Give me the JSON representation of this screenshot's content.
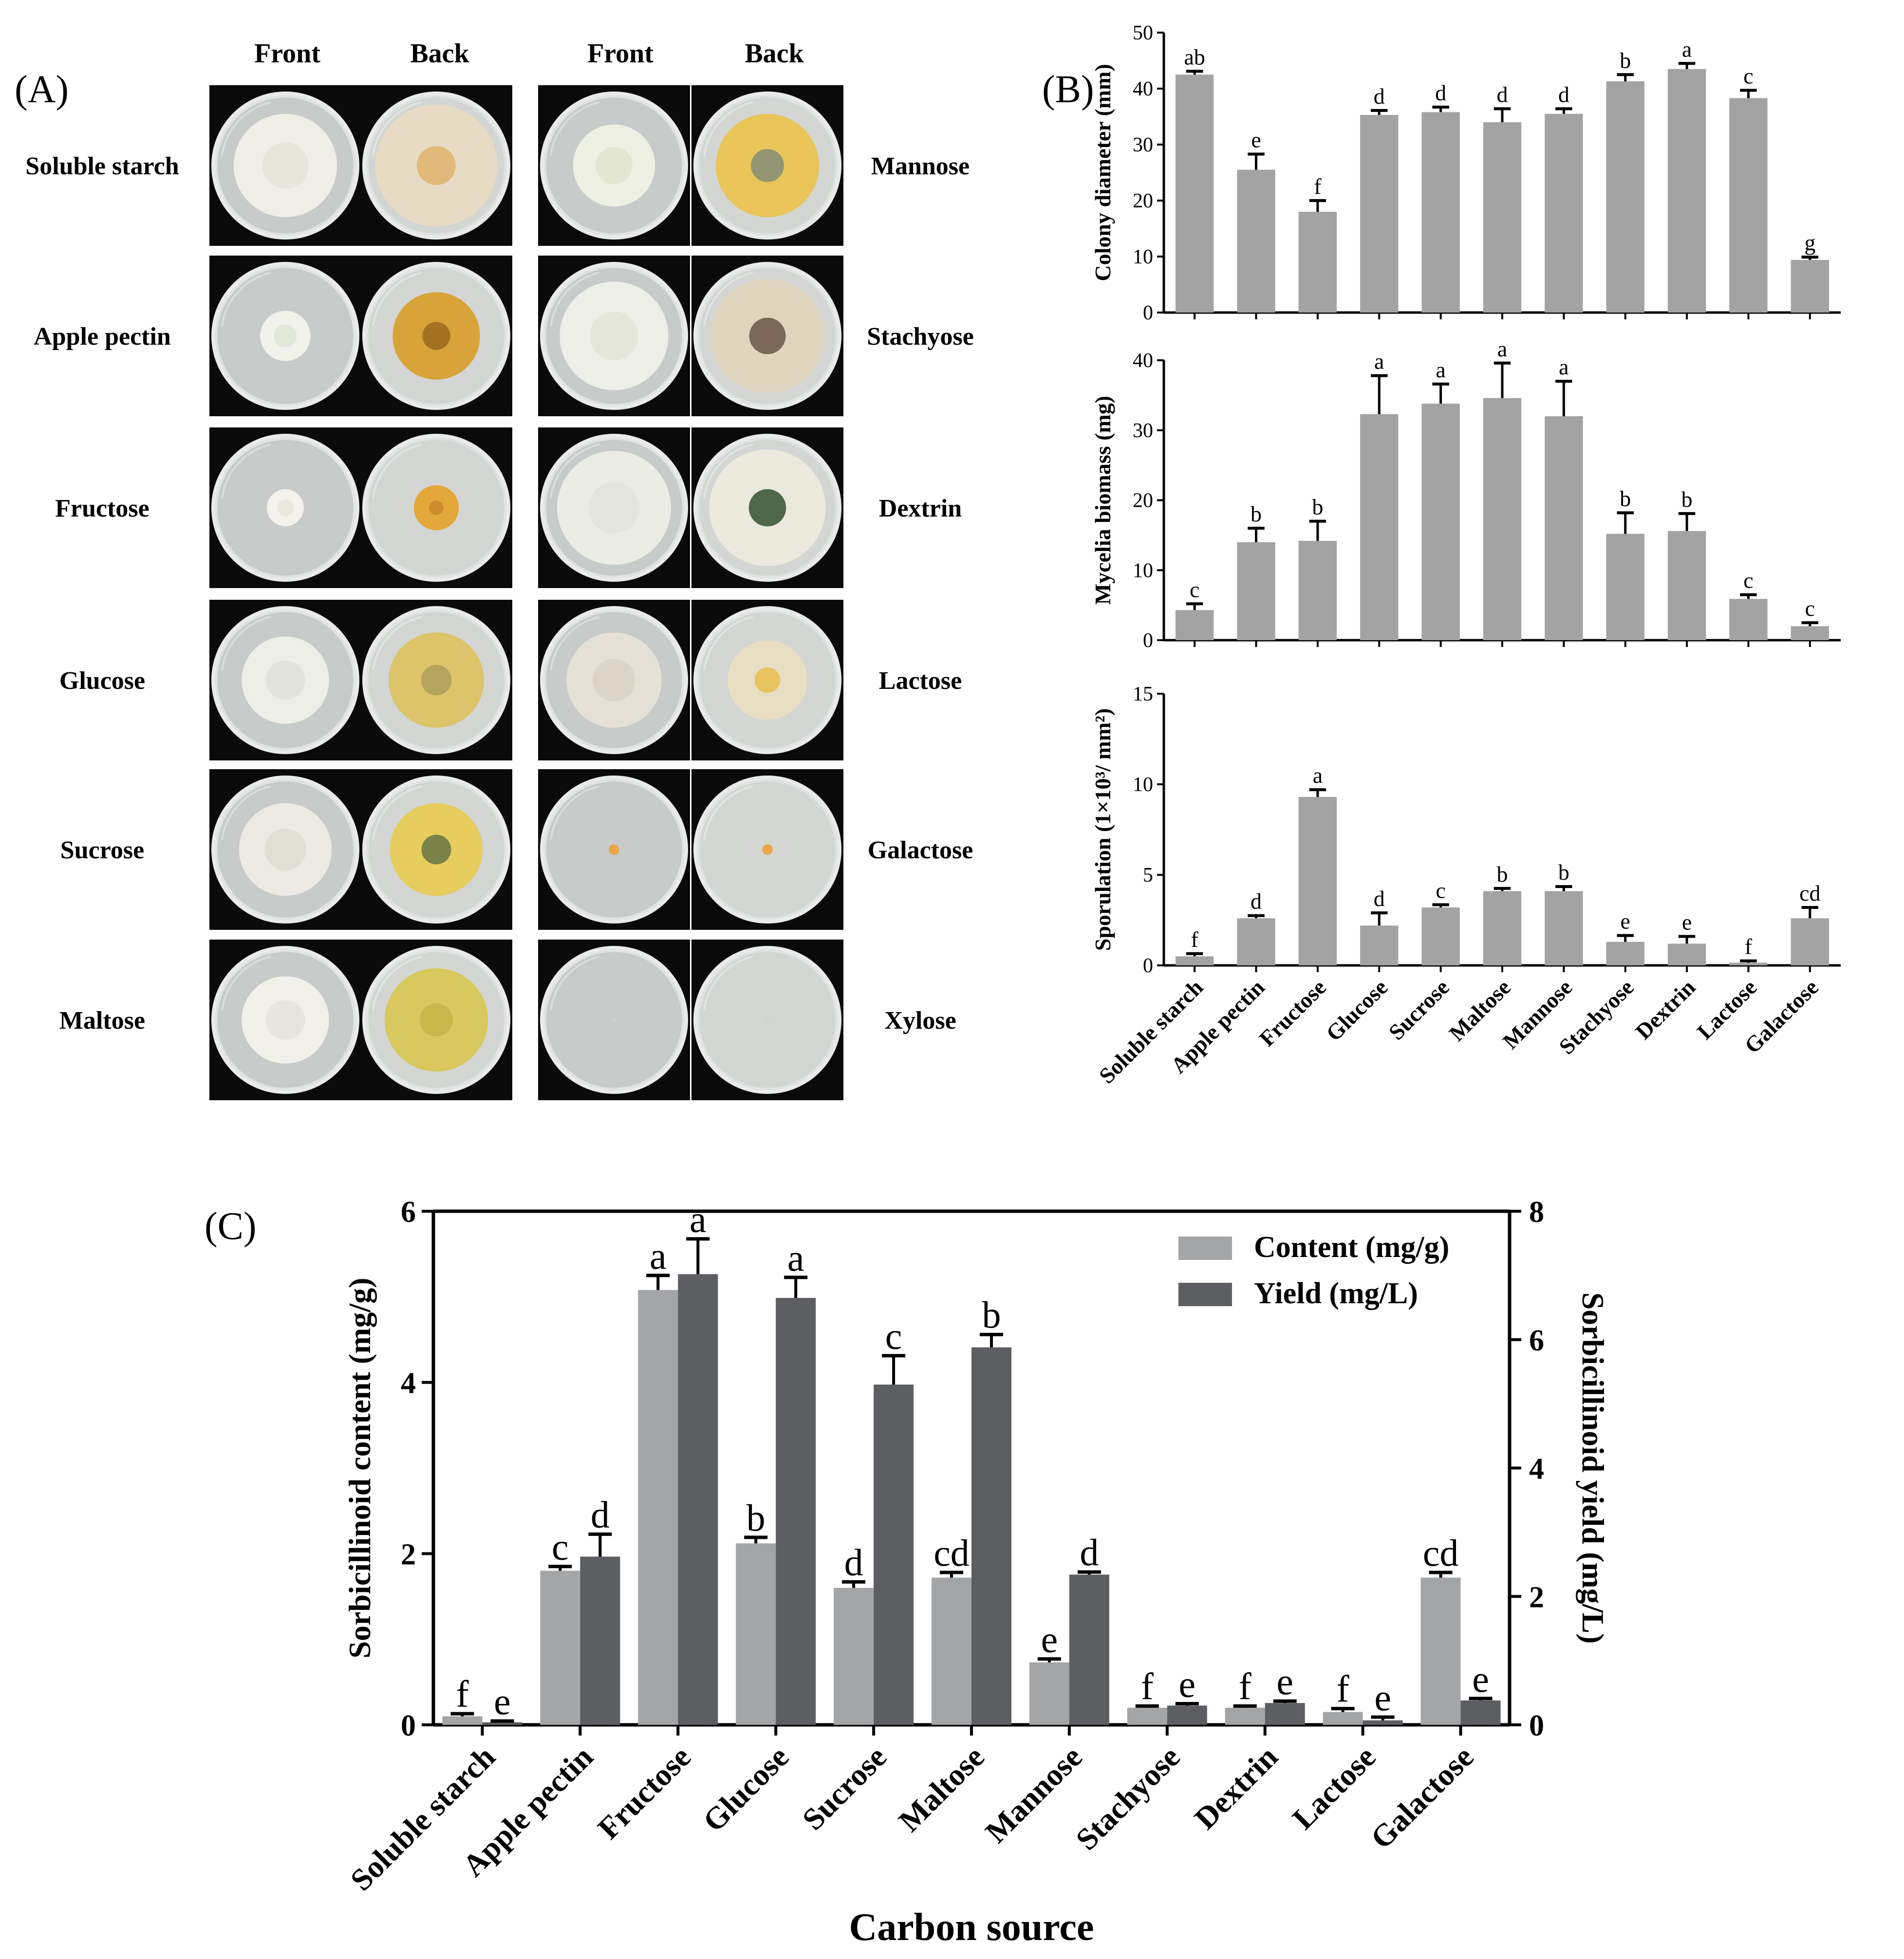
{
  "panelA": {
    "label": "(A)",
    "column_headers": [
      "Front",
      "Back",
      "Front",
      "Back"
    ],
    "left_labels": [
      "Soluble starch",
      "Apple pectin",
      "Fructose",
      "Glucose",
      "Sucrose",
      "Maltose"
    ],
    "right_labels": [
      "Mannose",
      "Stachyose",
      "Dextrin",
      "Lactose",
      "Galactose",
      "Xylose"
    ],
    "plates": [
      [
        {
          "front_colony": "#efefe8",
          "front_ring": "#e6e3d6",
          "back_fill": "#e7dcc3",
          "back_center": "#dfb573",
          "front_r": 0.78,
          "back_r": 0.92
        },
        {
          "front_colony": "#eef0e4",
          "front_ring": "#dfe3cd",
          "back_fill": "#e9c55a",
          "back_center": "#8a8f75",
          "front_r": 0.62,
          "back_r": 0.78
        }
      ],
      [
        {
          "front_colony": "#f1f2ec",
          "front_ring": "#dfe5d2",
          "back_fill": "#d8a338",
          "back_center": "#9c6d20",
          "front_r": 0.38,
          "back_r": 0.66
        },
        {
          "front_colony": "#eeefe8",
          "front_ring": "#e1e5d6",
          "back_fill": "#e0d6bf",
          "back_center": "#6f5c4e",
          "front_r": 0.82,
          "back_r": 0.86
        }
      ],
      [
        {
          "front_colony": "#f3f2ec",
          "front_ring": "#e8e6da",
          "back_fill": "#e4a73a",
          "back_center": "#c88b2a",
          "front_r": 0.28,
          "back_r": 0.34
        },
        {
          "front_colony": "#ebece4",
          "front_ring": "#e2e4d8",
          "back_fill": "#ece9dd",
          "back_center": "#3e5a38",
          "front_r": 0.86,
          "back_r": 0.88
        }
      ],
      [
        {
          "front_colony": "#eeeee8",
          "front_ring": "#dfe0d4",
          "back_fill": "#ddc36a",
          "back_center": "#b0a15c",
          "front_r": 0.66,
          "back_r": 0.72
        },
        {
          "front_colony": "#e6e1d6",
          "front_ring": "#d8d3c6",
          "back_fill": "#e8dfc2",
          "back_center": "#e9bf57",
          "front_r": 0.72,
          "back_r": 0.6
        }
      ],
      [
        {
          "front_colony": "#eceae2",
          "front_ring": "#dedbd0",
          "back_fill": "#e7cc5e",
          "back_center": "#6e7a45",
          "front_r": 0.7,
          "back_r": 0.7
        },
        {
          "front_colony": "#e8a94a",
          "front_ring": "#e8a94a",
          "back_fill": "#e9a849",
          "back_center": "#e9a849",
          "front_r": 0.08,
          "back_r": 0.08
        }
      ],
      [
        {
          "front_colony": "#f1f1ea",
          "front_ring": "#e4e4da",
          "back_fill": "#d8c85e",
          "back_center": "#c7b649",
          "front_r": 0.66,
          "back_r": 0.78
        },
        {
          "front_colony": "#cfd4d2",
          "front_ring": "#cfd4d2",
          "back_fill": "#cfd4d3",
          "back_center": "#cfd4d3",
          "front_r": 0.02,
          "back_r": 0.02
        }
      ]
    ],
    "colors": {
      "plate_bg": "#0a0a0a",
      "agar": "#c7cbc9",
      "agar_back": "#d3d6d3",
      "rim": "#e8ebea"
    }
  },
  "panelB": {
    "label": "(B)"
  },
  "panelC": {
    "label": "(C)"
  },
  "chart_data": [
    {
      "id": "colony-diameter",
      "type": "bar",
      "ylabel": "Colony diameter (mm)",
      "categories": [
        "Soluble starch",
        "Apple pectin",
        "Fructose",
        "Glucose",
        "Sucrose",
        "Maltose",
        "Mannose",
        "Stachyose",
        "Dextrin",
        "Lactose",
        "Galactose"
      ],
      "values": [
        42.5,
        25.5,
        18.0,
        35.3,
        35.8,
        34.0,
        35.5,
        41.3,
        43.5,
        38.3,
        9.4
      ],
      "errors": [
        0.6,
        2.8,
        2.0,
        0.8,
        0.9,
        2.4,
        0.9,
        1.2,
        1.0,
        1.4,
        0.5
      ],
      "letters": [
        "ab",
        "e",
        "f",
        "d",
        "d",
        "d",
        "d",
        "b",
        "a",
        "c",
        "g"
      ],
      "ylim": [
        0,
        50
      ],
      "yticks": [
        0,
        10,
        20,
        30,
        40,
        50
      ],
      "bar_color": "#a3a3a3"
    },
    {
      "id": "mycelia-biomass",
      "type": "bar",
      "ylabel": "Mycelia biomass (mg)",
      "categories": [
        "Soluble starch",
        "Apple pectin",
        "Fructose",
        "Glucose",
        "Sucrose",
        "Maltose",
        "Mannose",
        "Stachyose",
        "Dextrin",
        "Lactose",
        "Galactose"
      ],
      "values": [
        4.3,
        14.0,
        14.2,
        32.3,
        33.8,
        34.6,
        32.0,
        15.2,
        15.6,
        5.9,
        2.0
      ],
      "errors": [
        0.9,
        2.0,
        2.8,
        5.5,
        2.8,
        5.0,
        5.0,
        3.0,
        2.5,
        0.6,
        0.5
      ],
      "letters": [
        "c",
        "b",
        "b",
        "a",
        "a",
        "a",
        "a",
        "b",
        "b",
        "c",
        "c"
      ],
      "ylim": [
        0,
        40
      ],
      "yticks": [
        0,
        10,
        20,
        30,
        40
      ],
      "bar_color": "#a3a3a3"
    },
    {
      "id": "sporulation",
      "type": "bar",
      "ylabel": "Sporulation (1×10³/ mm²)",
      "categories": [
        "Soluble starch",
        "Apple pectin",
        "Fructose",
        "Glucose",
        "Sucrose",
        "Maltose",
        "Mannose",
        "Stachyose",
        "Dextrin",
        "Lactose",
        "Galactose"
      ],
      "values": [
        0.5,
        2.6,
        9.3,
        2.2,
        3.2,
        4.1,
        4.1,
        1.3,
        1.2,
        0.15,
        2.6
      ],
      "errors": [
        0.15,
        0.15,
        0.4,
        0.7,
        0.15,
        0.15,
        0.25,
        0.35,
        0.4,
        0.1,
        0.6
      ],
      "letters": [
        "f",
        "d",
        "a",
        "d",
        "c",
        "b",
        "b",
        "e",
        "e",
        "f",
        "cd"
      ],
      "ylim": [
        0,
        15
      ],
      "yticks": [
        0,
        5,
        10,
        15
      ],
      "bar_color": "#a3a3a3"
    },
    {
      "id": "sorbicillinoid",
      "type": "bar",
      "xlabel": "Carbon source",
      "ylabel": "Sorbicillinoid content (mg/g)",
      "ylabel_right": "Sorbicillinoid yield (mg/L)",
      "categories": [
        "Soluble starch",
        "Apple pectin",
        "Fructose",
        "Glucose",
        "Sucrose",
        "Maltose",
        "Mannose",
        "Stachyose",
        "Dextrin",
        "Lactose",
        "Galactose"
      ],
      "ylim": [
        0,
        6
      ],
      "yticks": [
        0,
        2,
        4,
        6
      ],
      "ylim_right": [
        0,
        8
      ],
      "yticks_right": [
        0,
        2,
        4,
        6,
        8
      ],
      "legend_position": "top-right",
      "series": [
        {
          "name": "Content (mg/g)",
          "axis": "left",
          "color": "#a4a5a7",
          "values": [
            0.1,
            1.8,
            5.08,
            2.12,
            1.6,
            1.72,
            0.73,
            0.2,
            0.2,
            0.15,
            1.72
          ],
          "errors": [
            0.03,
            0.05,
            0.17,
            0.07,
            0.07,
            0.06,
            0.04,
            0.02,
            0.02,
            0.04,
            0.06
          ],
          "letters": [
            "f",
            "c",
            "a",
            "b",
            "d",
            "cd",
            "e",
            "f",
            "f",
            "f",
            "cd"
          ]
        },
        {
          "name": "Yield (mg/L)",
          "axis": "right",
          "color": "#5d5e61",
          "values": [
            0.04,
            2.62,
            7.02,
            6.65,
            5.3,
            5.88,
            2.34,
            0.3,
            0.34,
            0.07,
            0.38
          ],
          "errors": [
            0.02,
            0.35,
            0.55,
            0.32,
            0.45,
            0.2,
            0.04,
            0.03,
            0.03,
            0.05,
            0.03
          ],
          "letters": [
            "e",
            "d",
            "a",
            "a",
            "c",
            "b",
            "d",
            "e",
            "e",
            "e",
            "e"
          ]
        }
      ]
    }
  ]
}
